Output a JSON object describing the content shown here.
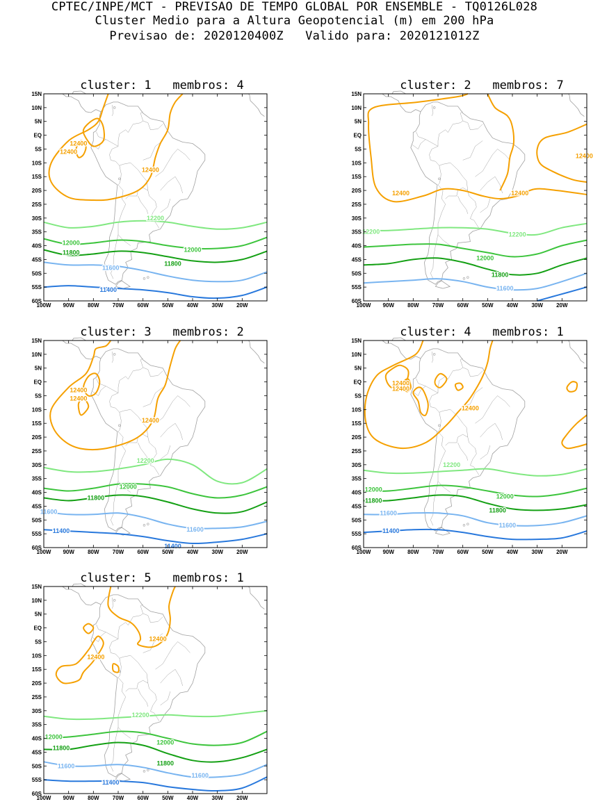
{
  "header": {
    "line1": "CPTEC/INPE/MCT - PREVISAO DE TEMPO GLOBAL POR ENSEMBLE - TQ0126L028",
    "line2": "Cluster Medio para a Altura Geopotencial (m) em 200 hPa",
    "line3": "Previsao de: 2020120400Z   Valido para: 2020121012Z"
  },
  "axes": {
    "y_ticks": [
      "15N",
      "10N",
      "5N",
      "EQ",
      "5S",
      "10S",
      "15S",
      "20S",
      "25S",
      "30S",
      "35S",
      "40S",
      "45S",
      "50S",
      "55S",
      "60S"
    ],
    "x_ticks": [
      "100W",
      "90W",
      "80W",
      "70W",
      "60W",
      "50W",
      "40W",
      "30W",
      "20W"
    ]
  },
  "colors": {
    "c12400": "#f5a000",
    "c12200": "#80e880",
    "c12000": "#3cc43c",
    "c11800": "#14a014",
    "c11600": "#78b4f0",
    "c11400": "#2878dc",
    "coast": "#a0a0a0"
  },
  "panels": [
    {
      "title": "cluster: 1   membros: 4",
      "labels": [
        "12400",
        "12400",
        "12400",
        "12200",
        "12000",
        "12000",
        "11800",
        "11800",
        "11600",
        "11400"
      ]
    },
    {
      "title": "cluster: 2   membros: 7",
      "labels": [
        "12400",
        "12400",
        "12400",
        "12200",
        "12200",
        "12000",
        "11800",
        "11600"
      ]
    },
    {
      "title": "cluster: 3   membros: 2",
      "labels": [
        "12400",
        "12400",
        "12400",
        "12200",
        "12000",
        "11800",
        "11600",
        "11600",
        "11400",
        "11400"
      ]
    },
    {
      "title": "cluster: 4   membros: 1",
      "labels": [
        "12400",
        "12400",
        "12400",
        "12200",
        "12000",
        "12000",
        "11800",
        "11800",
        "11600",
        "11600",
        "11400"
      ]
    },
    {
      "title": "cluster: 5   membros: 1",
      "labels": [
        "12400",
        "12400",
        "12200",
        "12000",
        "12000",
        "11800",
        "11800",
        "11600",
        "11600",
        "11400"
      ]
    }
  ]
}
